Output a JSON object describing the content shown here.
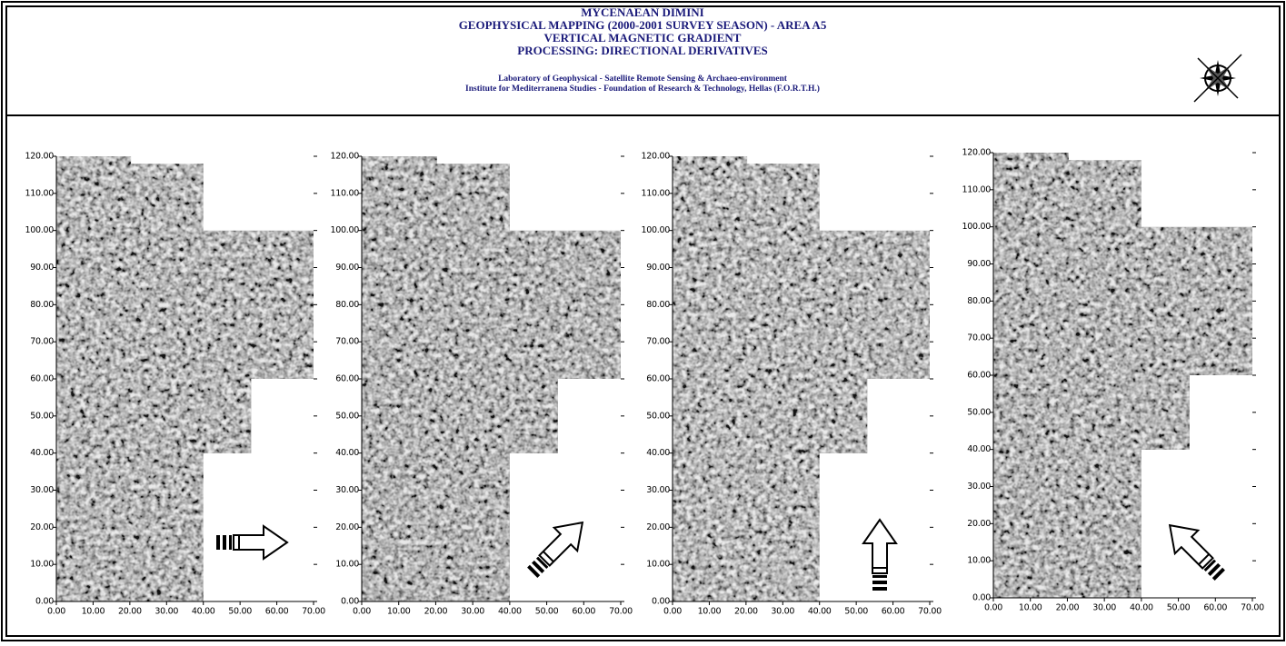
{
  "header": {
    "title_lines": [
      "MYCENAEAN DIMINI",
      "GEOPHYSICAL MAPPING (2000-2001 SURVEY SEASON) - AREA A5",
      "VERTICAL MAGNETIC GRADIENT",
      "PROCESSING: DIRECTIONAL DERIVATIVES"
    ],
    "credit_lines": [
      "Laboratory of Geophysical - Satellite Remote Sensing & Archaeo-environment",
      "Institute for Mediterranena Studies - Foundation of Research & Technology, Hellas (F.O.R.T.H.)"
    ]
  },
  "panels": [
    {
      "xticks": [
        {
          "value": 0,
          "label": "0.00"
        },
        {
          "value": 10,
          "label": "10.00"
        },
        {
          "value": 20,
          "label": "20.00"
        },
        {
          "value": 30,
          "label": "30.00"
        },
        {
          "value": 40,
          "label": "40.00"
        },
        {
          "value": 50,
          "label": "50.00"
        },
        {
          "value": 60,
          "label": "60.00"
        },
        {
          "value": 70,
          "label": "70.00"
        }
      ],
      "yticks": [
        {
          "value": 0,
          "label": "0.00"
        },
        {
          "value": 10,
          "label": "10.00"
        },
        {
          "value": 20,
          "label": "20.00"
        },
        {
          "value": 30,
          "label": "30.00"
        },
        {
          "value": 40,
          "label": "40.00"
        },
        {
          "value": 50,
          "label": "50.00"
        },
        {
          "value": 60,
          "label": "60.00"
        },
        {
          "value": 70,
          "label": "70.00"
        },
        {
          "value": 80,
          "label": "80.00"
        },
        {
          "value": 90,
          "label": "90.00"
        },
        {
          "value": 100,
          "label": "100.00"
        },
        {
          "value": 110,
          "label": "110.00"
        },
        {
          "value": 120,
          "label": "120.00"
        }
      ]
    },
    {
      "xticks": [
        {
          "value": 0,
          "label": "0.00"
        },
        {
          "value": 10,
          "label": "10.00"
        },
        {
          "value": 20,
          "label": "20.00"
        },
        {
          "value": 30,
          "label": "30.00"
        },
        {
          "value": 40,
          "label": "40.00"
        },
        {
          "value": 50,
          "label": "50.00"
        },
        {
          "value": 60,
          "label": "60.00"
        },
        {
          "value": 70,
          "label": "70.00"
        }
      ],
      "yticks": [
        {
          "value": 0,
          "label": "0.00"
        },
        {
          "value": 10,
          "label": "10.00"
        },
        {
          "value": 20,
          "label": "20.00"
        },
        {
          "value": 30,
          "label": "30.00"
        },
        {
          "value": 40,
          "label": "40.00"
        },
        {
          "value": 50,
          "label": "50.00"
        },
        {
          "value": 60,
          "label": "60.00"
        },
        {
          "value": 70,
          "label": "70.00"
        },
        {
          "value": 80,
          "label": "80.00"
        },
        {
          "value": 90,
          "label": "90.00"
        },
        {
          "value": 100,
          "label": "100.00"
        },
        {
          "value": 110,
          "label": "110.00"
        },
        {
          "value": 120,
          "label": "120.00"
        }
      ]
    },
    {
      "xticks": [
        {
          "value": 0,
          "label": "0.00"
        },
        {
          "value": 10,
          "label": "10.00"
        },
        {
          "value": 20,
          "label": "20.00"
        },
        {
          "value": 30,
          "label": "30.00"
        },
        {
          "value": 40,
          "label": "40.00"
        },
        {
          "value": 50,
          "label": "50.00"
        },
        {
          "value": 60,
          "label": "60.00"
        },
        {
          "value": 70,
          "label": "70.00"
        }
      ],
      "yticks": [
        {
          "value": 0,
          "label": "0.00"
        },
        {
          "value": 10,
          "label": "10.00"
        },
        {
          "value": 20,
          "label": "20.00"
        },
        {
          "value": 30,
          "label": "30.00"
        },
        {
          "value": 40,
          "label": "40.00"
        },
        {
          "value": 50,
          "label": "50.00"
        },
        {
          "value": 60,
          "label": "60.00"
        },
        {
          "value": 70,
          "label": "70.00"
        },
        {
          "value": 80,
          "label": "80.00"
        },
        {
          "value": 90,
          "label": "90.00"
        },
        {
          "value": 100,
          "label": "100.00"
        },
        {
          "value": 110,
          "label": "110.00"
        },
        {
          "value": 120,
          "label": "120.00"
        }
      ]
    },
    {
      "xticks": [
        {
          "value": 0,
          "label": "0.00"
        },
        {
          "value": 10,
          "label": "10.00"
        },
        {
          "value": 20,
          "label": "20.00"
        },
        {
          "value": 30,
          "label": "30.00"
        },
        {
          "value": 40,
          "label": "40.00"
        },
        {
          "value": 50,
          "label": "50.00"
        },
        {
          "value": 60,
          "label": "60.00"
        },
        {
          "value": 70,
          "label": "70.00"
        }
      ],
      "yticks": [
        {
          "value": 0,
          "label": "0.00"
        },
        {
          "value": 10,
          "label": "10.00"
        },
        {
          "value": 20,
          "label": "20.00"
        },
        {
          "value": 30,
          "label": "30.00"
        },
        {
          "value": 40,
          "label": "40.00"
        },
        {
          "value": 50,
          "label": "50.00"
        },
        {
          "value": 60,
          "label": "60.00"
        },
        {
          "value": 70,
          "label": "70.00"
        },
        {
          "value": 80,
          "label": "80.00"
        },
        {
          "value": 90,
          "label": "90.00"
        },
        {
          "value": 100,
          "label": "100.00"
        },
        {
          "value": 110,
          "label": "110.00"
        },
        {
          "value": 120,
          "label": "120.00"
        }
      ]
    }
  ]
}
